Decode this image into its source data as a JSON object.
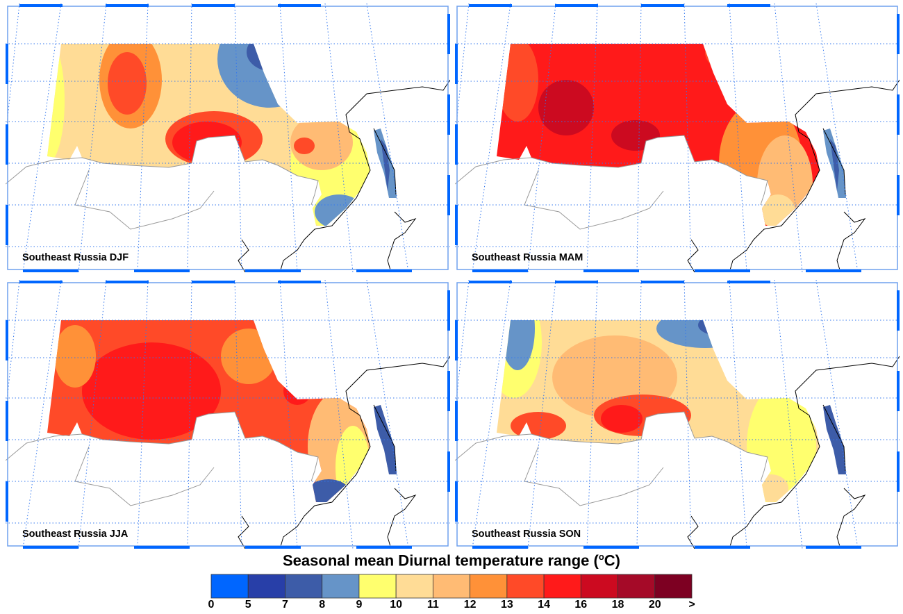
{
  "panels": [
    {
      "title": "Southeast Russia DJF",
      "season": "DJF"
    },
    {
      "title": "Southeast Russia MAM",
      "season": "MAM"
    },
    {
      "title": "Southeast Russia JJA",
      "season": "JJA"
    },
    {
      "title": "Southeast Russia SON",
      "season": "SON"
    }
  ],
  "colorbar": {
    "title": "Seasonal mean Diurnal temperature range (",
    "unit_sup": "o",
    "unit_tail": "C)",
    "labels": [
      "0",
      "5",
      "7",
      "8",
      "9",
      "10",
      "11",
      "12",
      "13",
      "14",
      "16",
      "18",
      "20",
      ">"
    ],
    "colors": [
      "#0066ff",
      "#283fa8",
      "#3d5ca8",
      "#6694c8",
      "#ffff6e",
      "#ffdc96",
      "#ffbb74",
      "#ff9138",
      "#ff4a28",
      "#ff1a1a",
      "#cc0a20",
      "#a50a28",
      "#7d0022"
    ]
  },
  "colors": {
    "grid": "#3377ee",
    "frame": "#0066ff",
    "border": "#999999",
    "coast": "#000000"
  }
}
